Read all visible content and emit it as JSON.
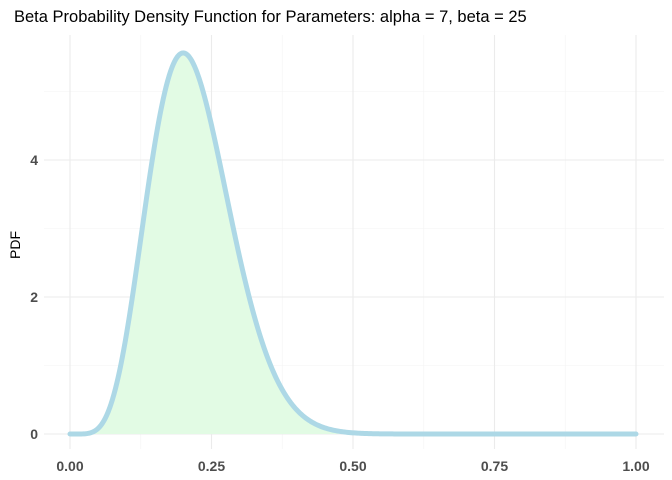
{
  "chart_data": {
    "type": "area",
    "title": "Beta Probability Density Function for Parameters:  alpha = 7, beta = 25",
    "xlabel": "",
    "ylabel": "PDF",
    "distribution": {
      "family": "beta",
      "alpha": 7,
      "beta": 25
    },
    "xlim": [
      0,
      1
    ],
    "ylim": [
      0,
      5.6
    ],
    "x_ticks": [
      0,
      0.25,
      0.5,
      0.75,
      1
    ],
    "x_tick_labels": [
      "0.00",
      "0.25",
      "0.50",
      "0.75",
      "1.00"
    ],
    "y_ticks": [
      0,
      2,
      4
    ],
    "y_tick_labels": [
      "0",
      "2",
      "4"
    ],
    "grid": true,
    "legend": "none",
    "series": [
      {
        "x": [
          0,
          0.02,
          0.04,
          0.06,
          0.08,
          0.1,
          0.12,
          0.14,
          0.16,
          0.18,
          0.2,
          0.22,
          0.24,
          0.26,
          0.28,
          0.3,
          0.32,
          0.34,
          0.36,
          0.38,
          0.4,
          0.42,
          0.44,
          0.46,
          0.48,
          0.5,
          0.55,
          0.6,
          0.7,
          0.8,
          0.9,
          1.0
        ],
        "y": [
          0,
          0.001,
          0.037,
          0.24,
          0.75,
          1.59,
          2.64,
          3.68,
          4.53,
          5.07,
          5.26,
          5.12,
          4.74,
          4.18,
          3.55,
          2.9,
          2.29,
          1.75,
          1.3,
          0.94,
          0.66,
          0.45,
          0.3,
          0.19,
          0.12,
          0.07,
          0.02,
          0.004,
          0,
          0,
          0,
          0
        ]
      }
    ],
    "colors": {
      "line": "#add8e6",
      "fill": "#e2fbe4"
    }
  }
}
